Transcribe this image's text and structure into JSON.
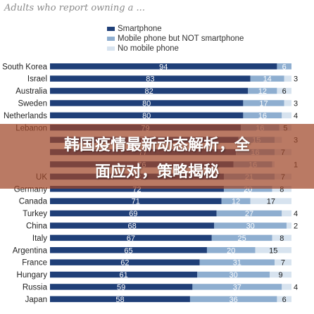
{
  "title": "Adults who report owning a ...",
  "banner": {
    "line1": "韩国疫情最新动态解析，全",
    "line2": "面应对，策略揭秘"
  },
  "colors": {
    "smartphone": "#1f3f78",
    "mobile_not_smart": "#8eaed0",
    "no_mobile": "#d7e3ef",
    "banner": "#a04628"
  },
  "chart_data": {
    "type": "bar",
    "orientation": "horizontal",
    "stacked": true,
    "title": "Adults who report owning a ...",
    "legend_position": "top-right",
    "grid": false,
    "xlim": [
      0,
      100
    ],
    "categories": [
      "South Korea",
      "Israel",
      "Australia",
      "Sweden",
      "Netherlands",
      "Lebanon",
      "",
      "",
      "",
      "UK",
      "Germany",
      "Canada",
      "Turkey",
      "China",
      "Italy",
      "Argentina",
      "France",
      "Hungary",
      "Russia",
      "Japan"
    ],
    "series": [
      {
        "name": "Smartphone",
        "values": [
          94,
          83,
          82,
          80,
          80,
          79,
          78,
          77,
          76,
          72,
          72,
          71,
          69,
          68,
          67,
          65,
          62,
          61,
          59,
          58
        ]
      },
      {
        "name": "Mobile phone but NOT smartphone",
        "values": [
          6,
          14,
          12,
          17,
          16,
          16,
          15,
          16,
          16,
          21,
          20,
          12,
          27,
          30,
          25,
          20,
          31,
          30,
          37,
          36
        ]
      },
      {
        "name": "No mobile phone",
        "values": [
          0,
          3,
          6,
          3,
          4,
          5,
          3,
          7,
          1,
          7,
          8,
          17,
          4,
          2,
          8,
          15,
          7,
          9,
          4,
          6
        ]
      }
    ]
  }
}
